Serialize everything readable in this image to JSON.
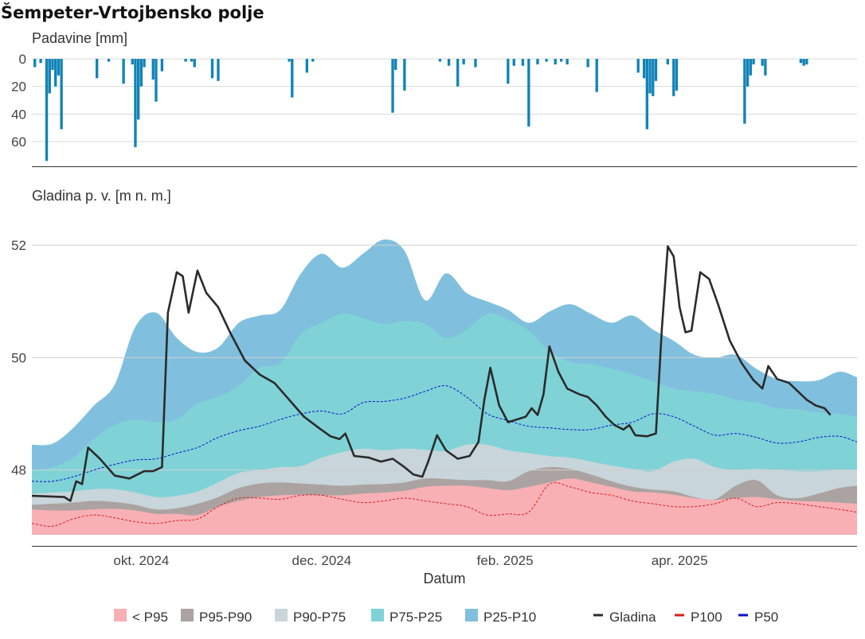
{
  "title": "Šempeter-Vrtojbensko polje",
  "chart_data": {
    "type": "area",
    "x_axis": {
      "label": "Datum",
      "range": [
        "2024-08-25",
        "2025-05-31"
      ],
      "ticks": [
        {
          "date": "2024-10-01",
          "label": "okt. 2024"
        },
        {
          "date": "2024-12-01",
          "label": "dec. 2024"
        },
        {
          "date": "2025-02-01",
          "label": "feb. 2025"
        },
        {
          "date": "2025-04-01",
          "label": "apr. 2025"
        }
      ]
    },
    "precip_panel": {
      "ylabel": "Padavine [mm]",
      "reversed": true,
      "ylim": [
        0,
        75
      ],
      "ticks": [
        0,
        20,
        40,
        60
      ],
      "color": "#1183b8",
      "values": [
        [
          "2024-08-26",
          6
        ],
        [
          "2024-08-28",
          3
        ],
        [
          "2024-08-30",
          74
        ],
        [
          "2024-08-31",
          25
        ],
        [
          "2024-09-01",
          8
        ],
        [
          "2024-09-02",
          20
        ],
        [
          "2024-09-03",
          12
        ],
        [
          "2024-09-04",
          51
        ],
        [
          "2024-09-16",
          14
        ],
        [
          "2024-09-20",
          2
        ],
        [
          "2024-09-25",
          18
        ],
        [
          "2024-09-28",
          4
        ],
        [
          "2024-09-29",
          64
        ],
        [
          "2024-09-30",
          44
        ],
        [
          "2024-10-01",
          20
        ],
        [
          "2024-10-02",
          6
        ],
        [
          "2024-10-05",
          15
        ],
        [
          "2024-10-06",
          31
        ],
        [
          "2024-10-08",
          9
        ],
        [
          "2024-10-16",
          2
        ],
        [
          "2024-10-18",
          2
        ],
        [
          "2024-10-19",
          6
        ],
        [
          "2024-10-25",
          14
        ],
        [
          "2024-10-27",
          16
        ],
        [
          "2024-11-20",
          2
        ],
        [
          "2024-11-21",
          28
        ],
        [
          "2024-11-26",
          10
        ],
        [
          "2024-11-28",
          2
        ],
        [
          "2024-12-25",
          39
        ],
        [
          "2024-12-26",
          8
        ],
        [
          "2024-12-29",
          23
        ],
        [
          "2025-01-10",
          2
        ],
        [
          "2025-01-13",
          5
        ],
        [
          "2025-01-16",
          20
        ],
        [
          "2025-01-18",
          4
        ],
        [
          "2025-01-22",
          6
        ],
        [
          "2025-02-02",
          18
        ],
        [
          "2025-02-04",
          5
        ],
        [
          "2025-02-07",
          5
        ],
        [
          "2025-02-09",
          49
        ],
        [
          "2025-02-12",
          4
        ],
        [
          "2025-02-15",
          2
        ],
        [
          "2025-02-18",
          4
        ],
        [
          "2025-02-20",
          2
        ],
        [
          "2025-02-22",
          4
        ],
        [
          "2025-03-01",
          6
        ],
        [
          "2025-03-04",
          24
        ],
        [
          "2025-03-18",
          10
        ],
        [
          "2025-03-20",
          14
        ],
        [
          "2025-03-21",
          51
        ],
        [
          "2025-03-22",
          25
        ],
        [
          "2025-03-23",
          27
        ],
        [
          "2025-03-24",
          16
        ],
        [
          "2025-03-28",
          4
        ],
        [
          "2025-03-30",
          27
        ],
        [
          "2025-03-31",
          23
        ],
        [
          "2025-04-23",
          47
        ],
        [
          "2025-04-24",
          20
        ],
        [
          "2025-04-25",
          12
        ],
        [
          "2025-04-26",
          4
        ],
        [
          "2025-04-29",
          5
        ],
        [
          "2025-04-30",
          12
        ],
        [
          "2025-05-12",
          3
        ],
        [
          "2025-05-13",
          5
        ],
        [
          "2025-05-14",
          4
        ]
      ]
    },
    "level_panel": {
      "ylabel": "Gladina p. v. [m n. m.]",
      "ylim": [
        46.65,
        52.3
      ],
      "ticks": [
        48,
        50,
        52
      ],
      "grid": true,
      "band_bottom": 46.85,
      "band_dates": [
        "2024-08-25",
        "2024-09-01",
        "2024-09-08",
        "2024-09-15",
        "2024-09-22",
        "2024-09-29",
        "2024-10-06",
        "2024-10-13",
        "2024-10-20",
        "2024-10-27",
        "2024-11-03",
        "2024-11-10",
        "2024-11-17",
        "2024-11-24",
        "2024-12-01",
        "2024-12-08",
        "2024-12-15",
        "2024-12-22",
        "2024-12-29",
        "2025-01-05",
        "2025-01-12",
        "2025-01-19",
        "2025-01-26",
        "2025-02-02",
        "2025-02-09",
        "2025-02-16",
        "2025-02-23",
        "2025-03-02",
        "2025-03-09",
        "2025-03-16",
        "2025-03-23",
        "2025-03-30",
        "2025-04-06",
        "2025-04-13",
        "2025-04-20",
        "2025-04-27",
        "2025-05-04",
        "2025-05-11",
        "2025-05-18",
        "2025-05-25",
        "2025-05-31"
      ],
      "bands": [
        {
          "name": "< P95",
          "color": "#f8b0b5",
          "upper": [
            47.3,
            47.28,
            47.28,
            47.3,
            47.31,
            47.28,
            47.22,
            47.22,
            47.2,
            47.35,
            47.45,
            47.52,
            47.55,
            47.56,
            47.55,
            47.55,
            47.58,
            47.6,
            47.63,
            47.7,
            47.72,
            47.72,
            47.68,
            47.64,
            47.7,
            47.78,
            47.85,
            47.78,
            47.7,
            47.62,
            47.6,
            47.56,
            47.5,
            47.47,
            47.5,
            47.52,
            47.48,
            47.45,
            47.44,
            47.42,
            47.4
          ]
        },
        {
          "name": "P95-P90",
          "color": "#aba3a1",
          "upper": [
            47.38,
            47.4,
            47.42,
            47.45,
            47.43,
            47.38,
            47.3,
            47.32,
            47.4,
            47.52,
            47.68,
            47.76,
            47.78,
            47.76,
            47.74,
            47.72,
            47.74,
            47.75,
            47.78,
            47.85,
            47.84,
            47.82,
            47.82,
            47.8,
            47.98,
            48.05,
            48.02,
            47.92,
            47.8,
            47.7,
            47.65,
            47.62,
            47.52,
            47.48,
            47.72,
            47.82,
            47.55,
            47.5,
            47.58,
            47.68,
            47.72
          ]
        },
        {
          "name": "P90-P75",
          "color": "#c8d5da",
          "upper": [
            47.58,
            47.6,
            47.62,
            47.66,
            47.66,
            47.6,
            47.52,
            47.54,
            47.62,
            47.78,
            47.95,
            48.0,
            48.05,
            48.07,
            48.22,
            48.32,
            48.38,
            48.35,
            48.38,
            48.36,
            48.34,
            48.45,
            48.45,
            48.35,
            48.3,
            48.25,
            48.22,
            48.15,
            48.08,
            48.02,
            47.98,
            48.15,
            48.2,
            48.05,
            48.0,
            48.02,
            48.0,
            47.98,
            47.98,
            48.0,
            48.0
          ]
        },
        {
          "name": "P75-P25",
          "color": "#7fd3d7",
          "upper": [
            48.0,
            48.05,
            48.22,
            48.55,
            48.8,
            48.9,
            48.85,
            48.9,
            49.18,
            49.3,
            49.5,
            49.82,
            49.9,
            50.42,
            50.62,
            50.78,
            50.7,
            50.6,
            50.65,
            50.6,
            50.35,
            50.5,
            50.78,
            50.68,
            50.48,
            50.12,
            49.92,
            49.88,
            49.8,
            49.7,
            49.58,
            49.45,
            49.4,
            49.35,
            49.25,
            49.2,
            49.1,
            49.08,
            49.02,
            49.0,
            48.95
          ]
        },
        {
          "name": "P25-P10",
          "color": "#80c0de",
          "upper": [
            48.45,
            48.47,
            48.75,
            49.15,
            49.52,
            50.55,
            50.8,
            50.35,
            50.1,
            50.18,
            50.62,
            50.75,
            50.85,
            51.5,
            51.85,
            51.6,
            51.85,
            52.1,
            51.9,
            51.02,
            51.5,
            51.15,
            51.0,
            50.85,
            50.62,
            50.82,
            50.95,
            50.78,
            50.62,
            50.75,
            50.5,
            50.3,
            50.05,
            50.0,
            50.05,
            49.8,
            49.62,
            49.58,
            49.6,
            49.75,
            49.65
          ]
        }
      ],
      "lines": {
        "p50": {
          "name": "P50",
          "color": "#0a0fc8",
          "dashed": true,
          "values": [
            47.8,
            47.8,
            47.88,
            48.0,
            48.1,
            48.18,
            48.2,
            48.3,
            48.4,
            48.58,
            48.7,
            48.78,
            48.9,
            49.0,
            49.05,
            49.0,
            49.2,
            49.22,
            49.28,
            49.4,
            49.5,
            49.3,
            49.0,
            48.88,
            48.78,
            48.75,
            48.72,
            48.72,
            48.8,
            48.85,
            49.0,
            48.95,
            48.78,
            48.62,
            48.65,
            48.58,
            48.48,
            48.5,
            48.58,
            48.6,
            48.5
          ]
        },
        "p100": {
          "name": "P100",
          "color": "#d81e1e",
          "dashed": true,
          "values": [
            47.05,
            47.0,
            47.13,
            47.2,
            47.15,
            47.08,
            47.05,
            47.1,
            47.13,
            47.35,
            47.5,
            47.5,
            47.48,
            47.55,
            47.55,
            47.48,
            47.42,
            47.45,
            47.5,
            47.45,
            47.4,
            47.35,
            47.2,
            47.22,
            47.25,
            47.75,
            47.7,
            47.6,
            47.55,
            47.45,
            47.4,
            47.35,
            47.35,
            47.4,
            47.5,
            47.35,
            47.42,
            47.4,
            47.35,
            47.3,
            47.25
          ]
        }
      },
      "gladina": {
        "name": "Gladina",
        "color": "#2b2b2b",
        "points": [
          [
            "2024-08-25",
            47.54
          ],
          [
            "2024-09-05",
            47.52
          ],
          [
            "2024-09-07",
            47.45
          ],
          [
            "2024-09-09",
            47.8
          ],
          [
            "2024-09-11",
            47.75
          ],
          [
            "2024-09-13",
            48.4
          ],
          [
            "2024-09-17",
            48.2
          ],
          [
            "2024-09-22",
            47.9
          ],
          [
            "2024-09-27",
            47.85
          ],
          [
            "2024-10-02",
            47.98
          ],
          [
            "2024-10-05",
            47.98
          ],
          [
            "2024-10-08",
            48.05
          ],
          [
            "2024-10-10",
            50.8
          ],
          [
            "2024-10-13",
            51.52
          ],
          [
            "2024-10-15",
            51.45
          ],
          [
            "2024-10-17",
            50.8
          ],
          [
            "2024-10-20",
            51.55
          ],
          [
            "2024-10-23",
            51.15
          ],
          [
            "2024-10-27",
            50.9
          ],
          [
            "2024-10-31",
            50.45
          ],
          [
            "2024-11-05",
            49.95
          ],
          [
            "2024-11-10",
            49.7
          ],
          [
            "2024-11-15",
            49.55
          ],
          [
            "2024-11-20",
            49.25
          ],
          [
            "2024-11-25",
            48.95
          ],
          [
            "2024-11-30",
            48.75
          ],
          [
            "2024-12-04",
            48.6
          ],
          [
            "2024-12-07",
            48.55
          ],
          [
            "2024-12-09",
            48.65
          ],
          [
            "2024-12-12",
            48.25
          ],
          [
            "2024-12-17",
            48.22
          ],
          [
            "2024-12-21",
            48.15
          ],
          [
            "2024-12-25",
            48.2
          ],
          [
            "2024-12-29",
            48.05
          ],
          [
            "2025-01-01",
            47.92
          ],
          [
            "2025-01-04",
            47.88
          ],
          [
            "2025-01-06",
            48.15
          ],
          [
            "2025-01-09",
            48.62
          ],
          [
            "2025-01-12",
            48.35
          ],
          [
            "2025-01-16",
            48.2
          ],
          [
            "2025-01-20",
            48.25
          ],
          [
            "2025-01-23",
            48.5
          ],
          [
            "2025-01-25",
            49.25
          ],
          [
            "2025-01-27",
            49.82
          ],
          [
            "2025-01-30",
            49.15
          ],
          [
            "2025-02-02",
            48.85
          ],
          [
            "2025-02-05",
            48.9
          ],
          [
            "2025-02-08",
            48.95
          ],
          [
            "2025-02-10",
            49.1
          ],
          [
            "2025-02-12",
            48.98
          ],
          [
            "2025-02-14",
            49.35
          ],
          [
            "2025-02-16",
            50.2
          ],
          [
            "2025-02-19",
            49.75
          ],
          [
            "2025-02-22",
            49.45
          ],
          [
            "2025-02-26",
            49.35
          ],
          [
            "2025-03-01",
            49.3
          ],
          [
            "2025-03-04",
            49.15
          ],
          [
            "2025-03-07",
            48.95
          ],
          [
            "2025-03-10",
            48.8
          ],
          [
            "2025-03-13",
            48.72
          ],
          [
            "2025-03-15",
            48.8
          ],
          [
            "2025-03-17",
            48.62
          ],
          [
            "2025-03-21",
            48.6
          ],
          [
            "2025-03-24",
            48.65
          ],
          [
            "2025-03-26",
            50.5
          ],
          [
            "2025-03-28",
            51.98
          ],
          [
            "2025-03-30",
            51.8
          ],
          [
            "2025-04-01",
            50.9
          ],
          [
            "2025-04-03",
            50.45
          ],
          [
            "2025-04-05",
            50.48
          ],
          [
            "2025-04-08",
            51.52
          ],
          [
            "2025-04-11",
            51.4
          ],
          [
            "2025-04-14",
            50.95
          ],
          [
            "2025-04-18",
            50.3
          ],
          [
            "2025-04-22",
            49.9
          ],
          [
            "2025-04-26",
            49.6
          ],
          [
            "2025-04-29",
            49.45
          ],
          [
            "2025-05-01",
            49.85
          ],
          [
            "2025-05-04",
            49.62
          ],
          [
            "2025-05-08",
            49.55
          ],
          [
            "2025-05-11",
            49.4
          ],
          [
            "2025-05-14",
            49.25
          ],
          [
            "2025-05-17",
            49.15
          ],
          [
            "2025-05-20",
            49.1
          ],
          [
            "2025-05-22",
            48.98
          ]
        ]
      }
    },
    "legend": {
      "placement": "bottom",
      "items": [
        {
          "label": "< P95",
          "kind": "box",
          "color": "#f8b0b5"
        },
        {
          "label": "P95-P90",
          "kind": "box",
          "color": "#aba3a1"
        },
        {
          "label": "P90-P75",
          "kind": "box",
          "color": "#c8d5da"
        },
        {
          "label": "P75-P25",
          "kind": "box",
          "color": "#7fd3d7"
        },
        {
          "label": "P25-P10",
          "kind": "box",
          "color": "#80c0de"
        },
        {
          "label": "Gladina",
          "kind": "line",
          "color": "#2b2b2b"
        },
        {
          "label": "P100",
          "kind": "line",
          "color": "#d81e1e"
        },
        {
          "label": "P50",
          "kind": "line",
          "color": "#0a0fc8"
        }
      ]
    }
  }
}
